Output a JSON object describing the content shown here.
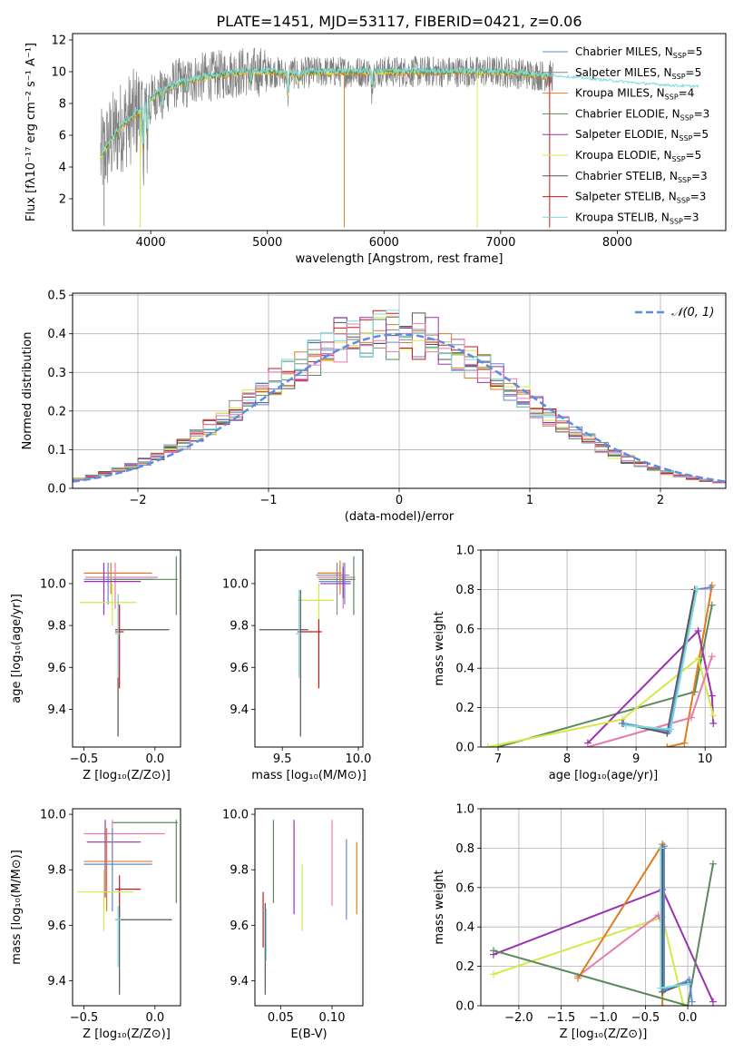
{
  "figure": {
    "title": "PLATE=1451, MJD=53117, FIBERID=0421, z=0.06"
  },
  "colors": {
    "chabrier_miles": "#6688cc",
    "salpeter_miles": "#888888",
    "kroupa_miles": "#e07b20",
    "chabrier_elodie": "#5a8a5a",
    "salpeter_elodie": "#9b30b0",
    "kroupa_elodie": "#d4e84a",
    "chabrier_stelib": "#555555",
    "salpeter_stelib": "#c81818",
    "kroupa_stelib": "#7adbe0",
    "gaussian": "#5b8ee0",
    "salpeter_pink": "#e87ab0"
  },
  "chart_data": [
    {
      "type": "line",
      "panel": "spectrum",
      "xlabel": "wavelength [Angstrom, rest frame]",
      "ylabel": "Flux [fλ10⁻¹⁷ erg cm⁻² s⁻¹ A⁻¹]",
      "xlim": [
        3330,
        8930
      ],
      "ylim": [
        0,
        12.4
      ],
      "xticks": [
        "4000",
        "5000",
        "6000",
        "7000",
        "8000"
      ],
      "yticks": [
        "2",
        "4",
        "6",
        "8",
        "10",
        "12"
      ],
      "legend_position": "right",
      "legend": [
        {
          "label": "Chabrier MILES, N",
          "sub": "SSP",
          "n": "=5",
          "color_key": "chabrier_miles"
        },
        {
          "label": "Salpeter MILES, N",
          "sub": "SSP",
          "n": "=5",
          "color_key": "salpeter_miles"
        },
        {
          "label": "Kroupa MILES, N",
          "sub": "SSP",
          "n": "=4",
          "color_key": "kroupa_miles"
        },
        {
          "label": "Chabrier ELODIE, N",
          "sub": "SSP",
          "n": "=3",
          "color_key": "chabrier_elodie"
        },
        {
          "label": "Salpeter ELODIE, N",
          "sub": "SSP",
          "n": "=5",
          "color_key": "salpeter_elodie"
        },
        {
          "label": "Kroupa ELODIE, N",
          "sub": "SSP",
          "n": "=5",
          "color_key": "kroupa_elodie"
        },
        {
          "label": "Chabrier STELIB, N",
          "sub": "SSP",
          "n": "=3",
          "color_key": "chabrier_stelib"
        },
        {
          "label": "Salpeter STELIB, N",
          "sub": "SSP",
          "n": "=3",
          "color_key": "salpeter_stelib"
        },
        {
          "label": "Kroupa STELIB, N",
          "sub": "SSP",
          "n": "=3",
          "color_key": "kroupa_stelib"
        }
      ],
      "continuum": [
        [
          3570,
          4.6
        ],
        [
          3650,
          5.6
        ],
        [
          3750,
          6.6
        ],
        [
          3850,
          7.2
        ],
        [
          3950,
          7.9
        ],
        [
          4050,
          8.6
        ],
        [
          4200,
          9.2
        ],
        [
          4400,
          9.6
        ],
        [
          4600,
          9.8
        ],
        [
          4800,
          10.0
        ],
        [
          5000,
          10.0
        ],
        [
          5200,
          9.9
        ],
        [
          5500,
          10.0
        ],
        [
          5800,
          10.0
        ],
        [
          6100,
          10.0
        ],
        [
          6400,
          10.0
        ],
        [
          6700,
          10.0
        ],
        [
          7000,
          10.0
        ],
        [
          7300,
          9.8
        ],
        [
          7600,
          9.6
        ],
        [
          7900,
          9.4
        ],
        [
          8200,
          9.2
        ],
        [
          8500,
          9.05
        ],
        [
          8700,
          9.0
        ]
      ],
      "absorption_features": [
        [
          3934,
          -3.0
        ],
        [
          3969,
          -2.2
        ],
        [
          4102,
          -1.0
        ],
        [
          4305,
          -0.8
        ],
        [
          4861,
          -0.9
        ],
        [
          5175,
          -1.6
        ],
        [
          5270,
          -0.6
        ],
        [
          5895,
          -1.1
        ]
      ],
      "spikes": [
        [
          5660,
          0.2,
          "kroupa_miles"
        ],
        [
          6800,
          0.2,
          "kroupa_elodie"
        ],
        [
          7420,
          0.2,
          "salpeter_stelib"
        ],
        [
          3910,
          0.2,
          "kroupa_elodie"
        ],
        [
          3600,
          0.3,
          "salpeter_miles"
        ]
      ]
    },
    {
      "type": "line",
      "panel": "residual_histogram",
      "xlabel": "(data-model)/error",
      "ylabel": "Normed distribution",
      "xlim": [
        -2.5,
        2.5
      ],
      "ylim": [
        0,
        0.505
      ],
      "xticks": [
        "−2",
        "−1",
        "0",
        "1",
        "2"
      ],
      "yticks": [
        "0.0",
        "0.1",
        "0.2",
        "0.3",
        "0.4",
        "0.5"
      ],
      "grid": true,
      "legend_position": "top-right",
      "legend_label": "𝒩(0, 1)",
      "bin_width": 0.1,
      "bin_start": -2.5,
      "gaussian": {
        "mean": 0,
        "sigma": 1
      },
      "series_keys": [
        "chabrier_miles",
        "salpeter_miles",
        "kroupa_miles",
        "chabrier_elodie",
        "salpeter_elodie",
        "kroupa_elodie",
        "chabrier_stelib",
        "salpeter_stelib",
        "kroupa_stelib",
        "salpeter_pink"
      ]
    },
    {
      "type": "scatter",
      "panel": "Z_age",
      "xlabel": "Z [log₁₀(Z/Z⊙)]",
      "ylabel": "age [log₁₀(age/yr)]",
      "xlim": [
        -0.58,
        0.18
      ],
      "ylim": [
        9.22,
        10.16
      ],
      "xticks": [
        "−0.5",
        "0.0"
      ],
      "xtick_vals": [
        -0.5,
        0.0
      ],
      "yticks": [
        "9.4",
        "9.6",
        "9.8",
        "10.0"
      ],
      "ytick_vals": [
        9.4,
        9.6,
        9.8,
        10.0
      ],
      "errorbars": [
        {
          "x": -0.31,
          "y": 10.05,
          "xlo": -0.5,
          "xhi": -0.02,
          "ylo": 9.95,
          "yhi": 10.1,
          "color_key": "kroupa_miles"
        },
        {
          "x": -0.28,
          "y": 10.03,
          "xlo": -0.49,
          "xhi": 0.02,
          "ylo": 9.88,
          "yhi": 10.1,
          "color_key": "salpeter_pink"
        },
        {
          "x": -0.33,
          "y": 10.02,
          "xlo": -0.5,
          "xhi": 0.0,
          "ylo": 9.9,
          "yhi": 10.1,
          "color_key": "chabrier_miles"
        },
        {
          "x": -0.36,
          "y": 10.01,
          "xlo": -0.5,
          "xhi": -0.1,
          "ylo": 9.85,
          "yhi": 10.1,
          "color_key": "salpeter_elodie"
        },
        {
          "x": 0.15,
          "y": 10.02,
          "xlo": -0.3,
          "xhi": 0.16,
          "ylo": 9.85,
          "yhi": 10.13,
          "color_key": "chabrier_elodie"
        },
        {
          "x": -0.3,
          "y": 9.91,
          "xlo": -0.53,
          "xhi": -0.13,
          "ylo": 9.8,
          "yhi": 10.0,
          "color_key": "kroupa_elodie"
        },
        {
          "x": -0.26,
          "y": 9.78,
          "xlo": -0.28,
          "xhi": 0.1,
          "ylo": 9.27,
          "yhi": 9.95,
          "color_key": "chabrier_stelib"
        },
        {
          "x": -0.25,
          "y": 9.77,
          "xlo": -0.28,
          "xhi": -0.22,
          "ylo": 9.5,
          "yhi": 9.9,
          "color_key": "salpeter_stelib"
        },
        {
          "x": -0.26,
          "y": 9.76,
          "xlo": -0.28,
          "xhi": -0.24,
          "ylo": 9.55,
          "yhi": 9.95,
          "color_key": "kroupa_stelib"
        }
      ]
    },
    {
      "type": "scatter",
      "panel": "mass_age",
      "xlabel": "mass [log₁₀(M/M⊙)]",
      "ylabel": "",
      "xlim": [
        9.32,
        10.03
      ],
      "ylim": [
        9.22,
        10.16
      ],
      "xticks": [
        "9.5",
        "10.0"
      ],
      "xtick_vals": [
        9.5,
        10.0
      ],
      "yticks": [
        "9.4",
        "9.6",
        "9.8",
        "10.0"
      ],
      "ytick_vals": [
        9.4,
        9.6,
        9.8,
        10.0
      ],
      "errorbars": [
        {
          "x": 9.88,
          "y": 10.05,
          "xlo": 9.73,
          "xhi": 9.89,
          "ylo": 9.95,
          "yhi": 10.11,
          "color_key": "kroupa_miles"
        },
        {
          "x": 9.86,
          "y": 10.04,
          "xlo": 9.72,
          "xhi": 9.94,
          "ylo": 9.85,
          "yhi": 10.1,
          "color_key": "salpeter_miles"
        },
        {
          "x": 9.9,
          "y": 10.03,
          "xlo": 9.73,
          "xhi": 9.98,
          "ylo": 9.88,
          "yhi": 10.1,
          "color_key": "salpeter_pink"
        },
        {
          "x": 9.91,
          "y": 10.01,
          "xlo": 9.74,
          "xhi": 9.95,
          "ylo": 9.9,
          "yhi": 10.1,
          "color_key": "chabrier_miles"
        },
        {
          "x": 9.97,
          "y": 10.02,
          "xlo": 9.74,
          "xhi": 9.98,
          "ylo": 9.85,
          "yhi": 10.13,
          "color_key": "chabrier_elodie"
        },
        {
          "x": 9.9,
          "y": 10.0,
          "xlo": 9.75,
          "xhi": 9.95,
          "ylo": 9.93,
          "yhi": 10.08,
          "color_key": "salpeter_elodie"
        },
        {
          "x": 9.74,
          "y": 9.92,
          "xlo": 9.6,
          "xhi": 9.84,
          "ylo": 9.81,
          "yhi": 10.0,
          "color_key": "kroupa_elodie"
        },
        {
          "x": 9.62,
          "y": 9.78,
          "xlo": 9.35,
          "xhi": 9.67,
          "ylo": 9.27,
          "yhi": 9.97,
          "color_key": "chabrier_stelib"
        },
        {
          "x": 9.74,
          "y": 9.77,
          "xlo": 9.6,
          "xhi": 9.76,
          "ylo": 9.5,
          "yhi": 9.83,
          "color_key": "salpeter_stelib"
        },
        {
          "x": 9.61,
          "y": 9.76,
          "xlo": 9.59,
          "xhi": 9.63,
          "ylo": 9.55,
          "yhi": 9.97,
          "color_key": "kroupa_stelib"
        }
      ]
    },
    {
      "type": "line",
      "panel": "age_massweight",
      "xlabel": "age [log₁₀(age/yr)]",
      "ylabel": "mass weight",
      "xlim": [
        6.75,
        10.3
      ],
      "ylim": [
        0,
        1.0
      ],
      "xticks": [
        "7",
        "8",
        "9",
        "10"
      ],
      "xtick_vals": [
        7,
        8,
        9,
        10
      ],
      "yticks": [
        "0.0",
        "0.2",
        "0.4",
        "0.6",
        "0.8",
        "1.0"
      ],
      "ytick_vals": [
        0,
        0.2,
        0.4,
        0.6,
        0.8,
        1.0
      ],
      "grid": true,
      "series": [
        {
          "color_key": "chabrier_elodie",
          "x": [
            7.0,
            9.85,
            10.1
          ],
          "y": [
            0.0,
            0.28,
            0.72
          ]
        },
        {
          "color_key": "kroupa_miles",
          "x": [
            9.45,
            9.7,
            10.1
          ],
          "y": [
            0.0,
            0.02,
            0.82
          ]
        },
        {
          "color_key": "salpeter_elodie",
          "x": [
            8.3,
            9.9,
            10.1,
            10.12
          ],
          "y": [
            0.02,
            0.59,
            0.26,
            0.12
          ]
        },
        {
          "color_key": "kroupa_elodie",
          "x": [
            6.85,
            8.8,
            9.9,
            10.12
          ],
          "y": [
            0.0,
            0.14,
            0.45,
            0.16
          ]
        },
        {
          "color_key": "salpeter_pink",
          "x": [
            8.3,
            9.8,
            10.1
          ],
          "y": [
            0.0,
            0.15,
            0.46
          ]
        },
        {
          "color_key": "chabrier_stelib",
          "x": [
            8.8,
            9.45,
            9.85
          ],
          "y": [
            0.12,
            0.07,
            0.8
          ]
        },
        {
          "color_key": "chabrier_miles",
          "x": [
            8.82,
            9.47,
            9.88,
            10.08
          ],
          "y": [
            0.12,
            0.08,
            0.8,
            0.81
          ]
        },
        {
          "color_key": "kroupa_stelib",
          "x": [
            8.85,
            9.5,
            9.88
          ],
          "y": [
            0.11,
            0.09,
            0.8
          ]
        }
      ]
    },
    {
      "type": "scatter",
      "panel": "Z_mass",
      "xlabel": "Z [log₁₀(Z/Z⊙)]",
      "ylabel": "mass [log₁₀(M/M⊙)]",
      "xlim": [
        -0.58,
        0.18
      ],
      "ylim": [
        9.31,
        10.02
      ],
      "xticks": [
        "−0.5",
        "0.0"
      ],
      "xtick_vals": [
        -0.5,
        0.0
      ],
      "yticks": [
        "9.4",
        "9.6",
        "9.8",
        "10.0"
      ],
      "ytick_vals": [
        9.4,
        9.6,
        9.8,
        10.0
      ],
      "errorbars": [
        {
          "x": 0.15,
          "y": 9.97,
          "xlo": -0.3,
          "xhi": 0.16,
          "ylo": 9.68,
          "yhi": 9.98,
          "color_key": "chabrier_elodie"
        },
        {
          "x": -0.3,
          "y": 9.93,
          "xlo": -0.5,
          "xhi": 0.07,
          "ylo": 9.8,
          "yhi": 9.98,
          "color_key": "salpeter_pink"
        },
        {
          "x": -0.35,
          "y": 9.9,
          "xlo": -0.48,
          "xhi": -0.1,
          "ylo": 9.7,
          "yhi": 9.98,
          "color_key": "salpeter_elodie"
        },
        {
          "x": -0.34,
          "y": 9.83,
          "xlo": -0.5,
          "xhi": -0.02,
          "ylo": 9.65,
          "yhi": 9.95,
          "color_key": "kroupa_miles"
        },
        {
          "x": -0.3,
          "y": 9.82,
          "xlo": -0.5,
          "xhi": -0.02,
          "ylo": 9.65,
          "yhi": 9.95,
          "color_key": "chabrier_miles"
        },
        {
          "x": -0.25,
          "y": 9.73,
          "xlo": -0.28,
          "xhi": -0.1,
          "ylo": 9.63,
          "yhi": 9.78,
          "color_key": "salpeter_stelib"
        },
        {
          "x": -0.36,
          "y": 9.72,
          "xlo": -0.55,
          "xhi": -0.15,
          "ylo": 9.58,
          "yhi": 9.8,
          "color_key": "kroupa_elodie"
        },
        {
          "x": -0.25,
          "y": 9.62,
          "xlo": -0.28,
          "xhi": 0.12,
          "ylo": 9.35,
          "yhi": 9.67,
          "color_key": "chabrier_stelib"
        },
        {
          "x": -0.26,
          "y": 9.62,
          "xlo": -0.28,
          "xhi": -0.24,
          "ylo": 9.45,
          "yhi": 9.67,
          "color_key": "kroupa_stelib"
        }
      ]
    },
    {
      "type": "scatter",
      "panel": "EBV_mass",
      "xlabel": "E(B-V)",
      "ylabel": "",
      "xlim": [
        0.025,
        0.13
      ],
      "ylim": [
        9.31,
        10.02
      ],
      "xticks": [
        "0.05",
        "0.10"
      ],
      "xtick_vals": [
        0.05,
        0.1
      ],
      "yticks": [
        "9.4",
        "9.6",
        "9.8",
        "10.0"
      ],
      "ytick_vals": [
        9.4,
        9.6,
        9.8,
        10.0
      ],
      "errorbars": [
        {
          "x": 0.043,
          "y": 9.82,
          "ylo": 9.68,
          "yhi": 9.98,
          "color_key": "chabrier_elodie"
        },
        {
          "x": 0.063,
          "y": 9.81,
          "ylo": 9.64,
          "yhi": 9.98,
          "color_key": "salpeter_elodie"
        },
        {
          "x": 0.071,
          "y": 9.7,
          "ylo": 9.58,
          "yhi": 9.82,
          "color_key": "kroupa_elodie"
        },
        {
          "x": 0.1,
          "y": 9.81,
          "ylo": 9.67,
          "yhi": 9.98,
          "color_key": "salpeter_pink"
        },
        {
          "x": 0.114,
          "y": 9.78,
          "ylo": 9.62,
          "yhi": 9.91,
          "color_key": "chabrier_miles"
        },
        {
          "x": 0.124,
          "y": 9.77,
          "ylo": 9.64,
          "yhi": 9.9,
          "color_key": "kroupa_miles"
        },
        {
          "x": 0.033,
          "y": 9.62,
          "ylo": 9.52,
          "yhi": 9.72,
          "color_key": "salpeter_stelib"
        },
        {
          "x": 0.035,
          "y": 9.55,
          "ylo": 9.35,
          "yhi": 9.68,
          "color_key": "chabrier_stelib"
        },
        {
          "x": 0.036,
          "y": 9.56,
          "ylo": 9.47,
          "yhi": 9.66,
          "color_key": "kroupa_stelib"
        }
      ]
    },
    {
      "type": "line",
      "panel": "Z_massweight",
      "xlabel": "Z [log₁₀(Z/Z⊙)]",
      "ylabel": "mass weight",
      "xlim": [
        -2.45,
        0.45
      ],
      "ylim": [
        0,
        1.0
      ],
      "xticks": [
        "−2.0",
        "−1.5",
        "−1.0",
        "−0.5",
        "0.0"
      ],
      "xtick_vals": [
        -2.0,
        -1.5,
        -1.0,
        -0.5,
        0.0
      ],
      "yticks": [
        "0.0",
        "0.2",
        "0.4",
        "0.6",
        "0.8",
        "1.0"
      ],
      "ytick_vals": [
        0,
        0.2,
        0.4,
        0.6,
        0.8,
        1.0
      ],
      "grid": true,
      "series": [
        {
          "color_key": "salpeter_elodie",
          "x": [
            -2.3,
            -0.3,
            0.3
          ],
          "y": [
            0.26,
            0.59,
            0.02
          ]
        },
        {
          "color_key": "kroupa_elodie",
          "x": [
            -2.3,
            -0.3,
            -0.05
          ],
          "y": [
            0.16,
            0.45,
            0.0
          ]
        },
        {
          "color_key": "salpeter_pink",
          "x": [
            -1.3,
            -0.35,
            -0.3
          ],
          "y": [
            0.15,
            0.46,
            0.4
          ]
        },
        {
          "color_key": "kroupa_miles",
          "x": [
            -1.3,
            -0.3,
            -0.3
          ],
          "y": [
            0.14,
            0.82,
            0.0
          ]
        },
        {
          "color_key": "chabrier_elodie",
          "x": [
            -2.3,
            0.0,
            0.3
          ],
          "y": [
            0.28,
            0.0,
            0.72
          ]
        },
        {
          "color_key": "chabrier_stelib",
          "x": [
            -0.3,
            -0.3,
            0.0
          ],
          "y": [
            0.8,
            0.07,
            0.12
          ]
        },
        {
          "color_key": "chabrier_miles",
          "x": [
            -0.28,
            -0.28,
            0.02,
            0.05
          ],
          "y": [
            0.81,
            0.08,
            0.13,
            0.02
          ]
        },
        {
          "color_key": "kroupa_stelib",
          "x": [
            -0.32,
            -0.32,
            0.0
          ],
          "y": [
            0.8,
            0.09,
            0.11
          ]
        }
      ]
    }
  ]
}
